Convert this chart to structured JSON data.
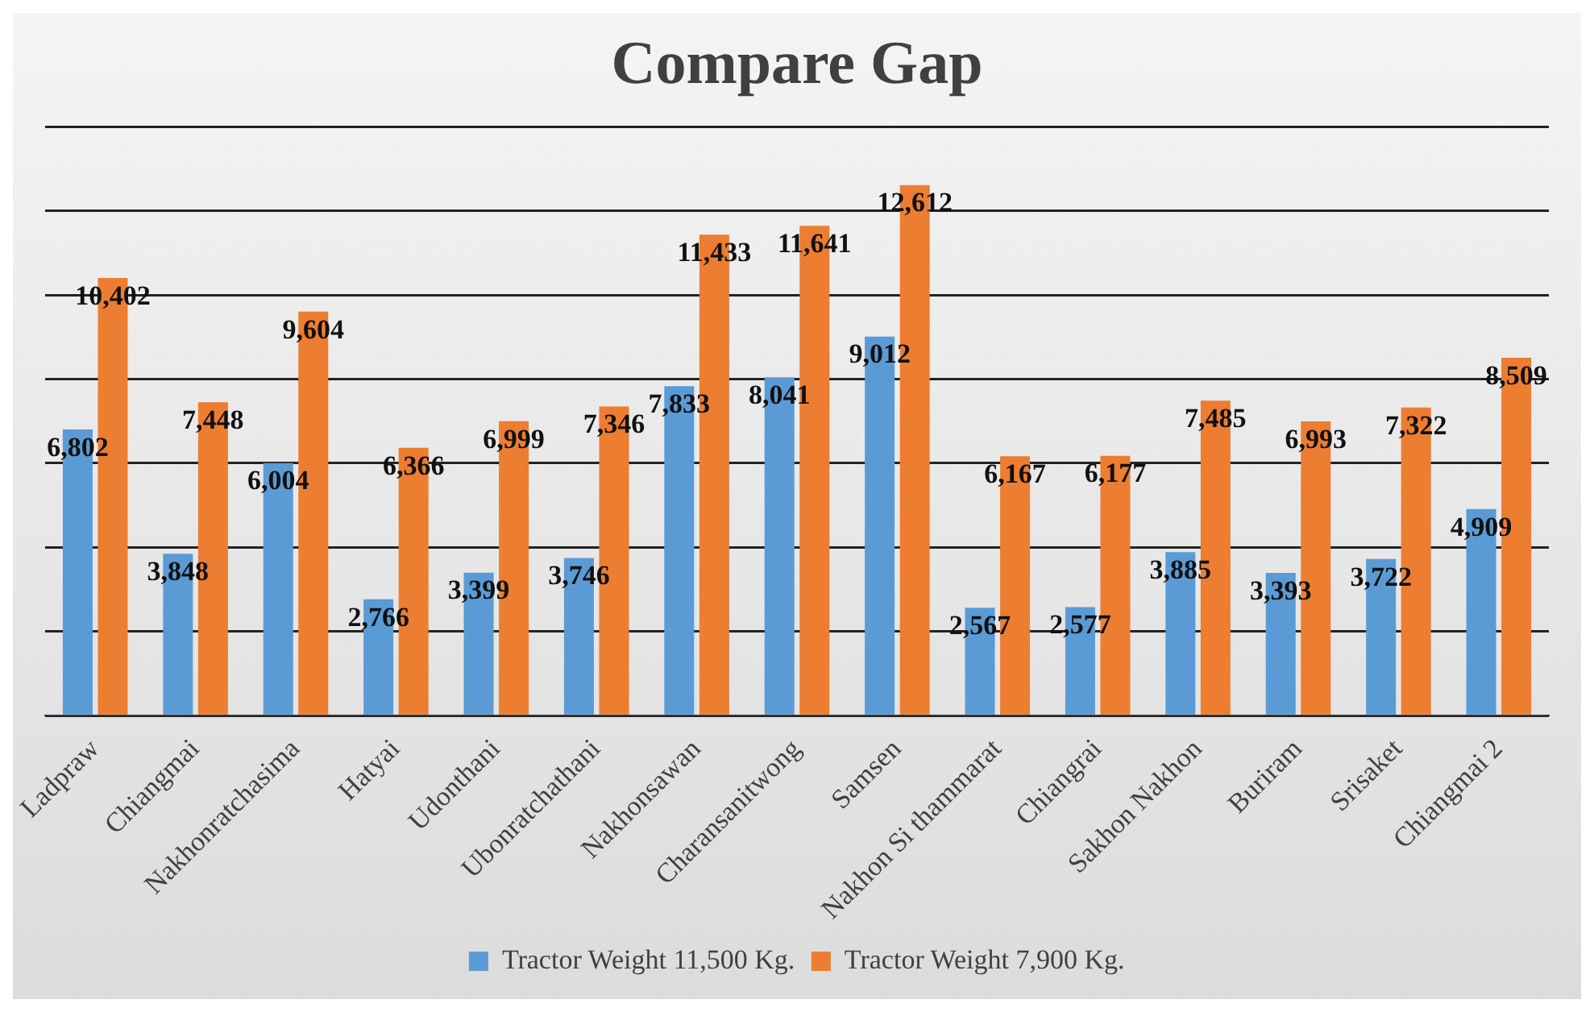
{
  "chart_data": {
    "type": "bar",
    "title": "Compare Gap",
    "categories": [
      "Ladpraw",
      "Chiangmai",
      "Nakhonratchasima",
      "Hatyai",
      "Udonthani",
      "Ubonratchathani",
      "Nakhonsawan",
      "Charansanitwong",
      "Samsen",
      "Nakhon Si thammarat",
      "Chiangrai",
      "Sakhon Nakhon",
      "Buriram",
      "Srisaket",
      "Chiangmai 2"
    ],
    "series": [
      {
        "name": "Tractor Weight 11,500 Kg.",
        "color": "#5b9bd5",
        "values": [
          6802,
          3848,
          6004,
          2766,
          3399,
          3746,
          7833,
          8041,
          9012,
          2567,
          2577,
          3885,
          3393,
          3722,
          4909
        ],
        "value_labels": [
          "6,802",
          "3,848",
          "6,004",
          "2,766",
          "3,399",
          "3,746",
          "7,833",
          "8,041",
          "9,012",
          "2,567",
          "2,577",
          "3,885",
          "3,393",
          "3,722",
          "4,909"
        ]
      },
      {
        "name": "Tractor Weight 7,900 Kg.",
        "color": "#ed7d31",
        "values": [
          10402,
          7448,
          9604,
          6366,
          6999,
          7346,
          11433,
          11641,
          12612,
          6167,
          6177,
          7485,
          6993,
          7322,
          8509
        ],
        "value_labels": [
          "10,402",
          "7,448",
          "9,604",
          "6,366",
          "6,999",
          "7,346",
          "11,433",
          "11,641",
          "12,612",
          "6,167",
          "6,177",
          "7,485",
          "6,993",
          "7,322",
          "8,509"
        ]
      }
    ],
    "tick_labels": "x",
    "grid": "y",
    "legend": "bottom"
  }
}
